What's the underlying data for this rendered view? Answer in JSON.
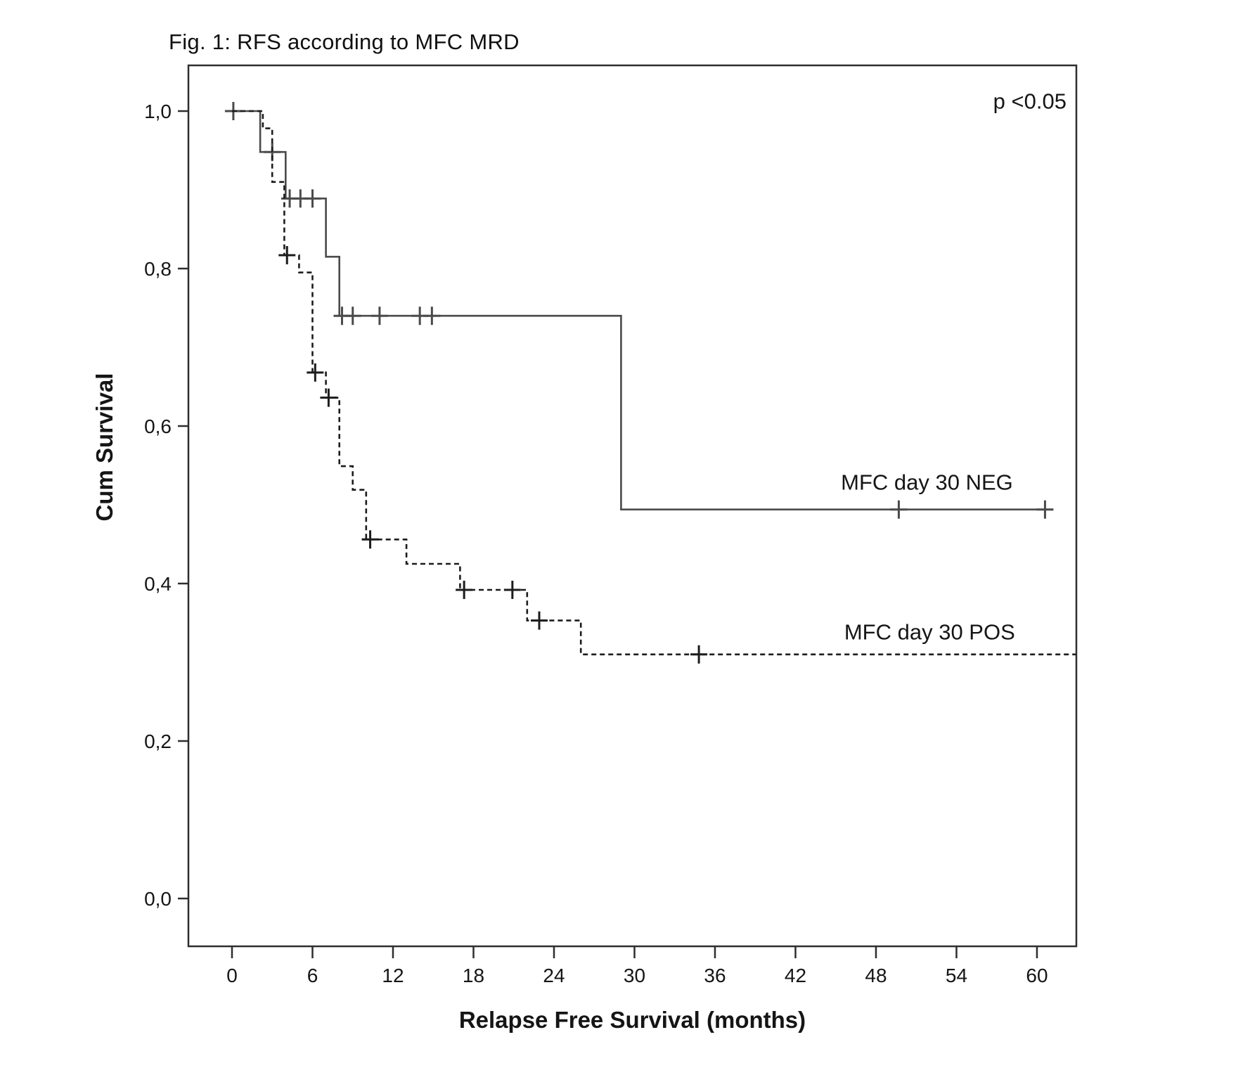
{
  "figure": {
    "title": "Fig. 1: RFS according to MFC MRD",
    "p_value_annotation": "p <0.05"
  },
  "chart_data": {
    "type": "line",
    "subtype": "kaplan_meier_step_function",
    "title": "Fig. 1: RFS according to MFC MRD",
    "xlabel": "Relapse Free Survival (months)",
    "ylabel": "Cum Survival",
    "grid": false,
    "legend_position": "inline-labels",
    "x_axis": {
      "min": 0,
      "max": 63,
      "ticks": [
        0,
        6,
        12,
        18,
        24,
        30,
        36,
        42,
        48,
        54,
        60
      ]
    },
    "y_axis": {
      "min": 0.0,
      "max": 1.0,
      "ticks": [
        {
          "value": 1.0,
          "label": "1,0"
        },
        {
          "value": 0.8,
          "label": "0,8"
        },
        {
          "value": 0.6,
          "label": "0,6"
        },
        {
          "value": 0.4,
          "label": "0,4"
        },
        {
          "value": 0.2,
          "label": "0,2"
        },
        {
          "value": 0.0,
          "label": "0,0"
        }
      ]
    },
    "annotations": [
      {
        "id": "p-value",
        "text": "p <0.05",
        "x": 62.2,
        "y": 1.003,
        "anchor": "end"
      }
    ],
    "series": [
      {
        "name": "MFC day 30 NEG",
        "line_style": "solid",
        "color": "#4a4a4a",
        "label": {
          "text": "MFC day 30 NEG",
          "x": 51.8,
          "y": 0.519
        },
        "steps": [
          [
            0,
            1.0
          ],
          [
            2.1,
            1.0
          ],
          [
            2.1,
            0.948
          ],
          [
            4,
            0.948
          ],
          [
            4,
            0.889
          ],
          [
            7,
            0.889
          ],
          [
            7,
            0.815
          ],
          [
            8,
            0.815
          ],
          [
            8,
            0.74
          ],
          [
            29,
            0.74
          ],
          [
            29,
            0.494
          ],
          [
            61.2,
            0.494
          ]
        ],
        "censor_marks": [
          [
            0.1,
            1.0
          ],
          [
            3,
            0.948
          ],
          [
            4.3,
            0.889
          ],
          [
            5.1,
            0.889
          ],
          [
            6,
            0.889
          ],
          [
            8.2,
            0.74
          ],
          [
            9,
            0.74
          ],
          [
            11,
            0.74
          ],
          [
            14,
            0.74
          ],
          [
            14.9,
            0.74
          ],
          [
            49.7,
            0.494
          ],
          [
            60.6,
            0.494
          ]
        ]
      },
      {
        "name": "MFC day 30 POS",
        "line_style": "dashed",
        "color": "#1c1c1c",
        "label": {
          "text": "MFC day 30 POS",
          "x": 52.0,
          "y": 0.329
        },
        "steps": [
          [
            0,
            1.0
          ],
          [
            2.3,
            1.0
          ],
          [
            2.3,
            0.978
          ],
          [
            3,
            0.978
          ],
          [
            3,
            0.91
          ],
          [
            3.9,
            0.91
          ],
          [
            3.9,
            0.817
          ],
          [
            5,
            0.817
          ],
          [
            5,
            0.795
          ],
          [
            6,
            0.795
          ],
          [
            6,
            0.668
          ],
          [
            7,
            0.668
          ],
          [
            7,
            0.636
          ],
          [
            8,
            0.636
          ],
          [
            8,
            0.549
          ],
          [
            9,
            0.549
          ],
          [
            9,
            0.519
          ],
          [
            10,
            0.519
          ],
          [
            10,
            0.456
          ],
          [
            13,
            0.456
          ],
          [
            13,
            0.425
          ],
          [
            17,
            0.425
          ],
          [
            17,
            0.392
          ],
          [
            22,
            0.392
          ],
          [
            22,
            0.353
          ],
          [
            26,
            0.353
          ],
          [
            26,
            0.31
          ],
          [
            62.9,
            0.31
          ]
        ],
        "censor_marks": [
          [
            4.1,
            0.817
          ],
          [
            6.2,
            0.668
          ],
          [
            7.2,
            0.636
          ],
          [
            10.3,
            0.456
          ],
          [
            17.3,
            0.392
          ],
          [
            20.9,
            0.392
          ],
          [
            22.9,
            0.353
          ],
          [
            34.8,
            0.31
          ]
        ]
      }
    ],
    "frame_color": "#2e2e2e",
    "text_color": "#151515"
  }
}
